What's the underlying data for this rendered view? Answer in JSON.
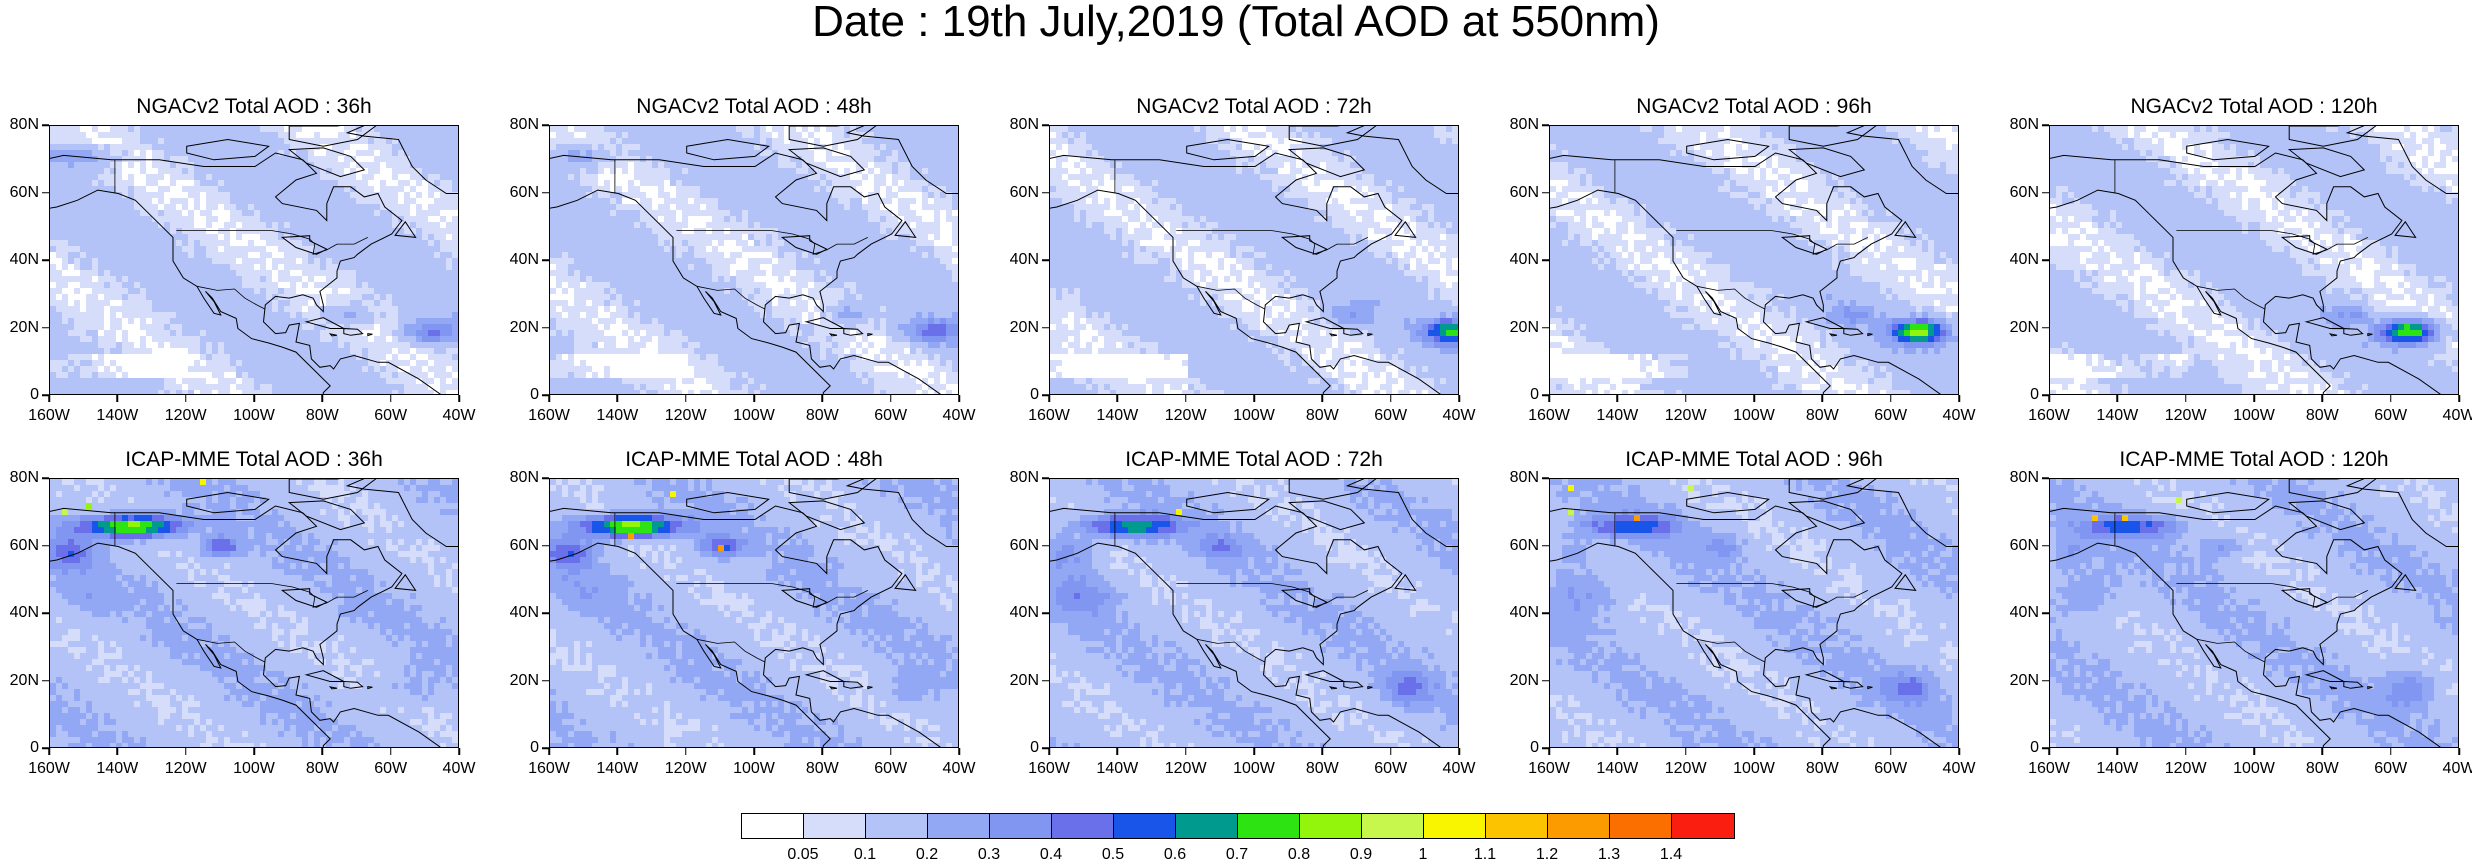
{
  "title": "Date : 19th July,2019 (Total AOD at 550nm)",
  "lat_labels": [
    "0",
    "20N",
    "40N",
    "60N",
    "80N"
  ],
  "lon_labels": [
    "160W",
    "140W",
    "120W",
    "100W",
    "80W",
    "60W",
    "40W"
  ],
  "panels": [
    {
      "title": "NGACv2 Total AOD : 36h",
      "model": "ngac",
      "hour": 36
    },
    {
      "title": "NGACv2 Total AOD : 48h",
      "model": "ngac",
      "hour": 48
    },
    {
      "title": "NGACv2 Total AOD : 72h",
      "model": "ngac",
      "hour": 72
    },
    {
      "title": "NGACv2 Total AOD : 96h",
      "model": "ngac",
      "hour": 96
    },
    {
      "title": "NGACv2 Total AOD : 120h",
      "model": "ngac",
      "hour": 120
    },
    {
      "title": "ICAP-MME Total AOD : 36h",
      "model": "icap",
      "hour": 36
    },
    {
      "title": "ICAP-MME Total AOD : 48h",
      "model": "icap",
      "hour": 48
    },
    {
      "title": "ICAP-MME Total AOD : 72h",
      "model": "icap",
      "hour": 72
    },
    {
      "title": "ICAP-MME Total AOD : 96h",
      "model": "icap",
      "hour": 96
    },
    {
      "title": "ICAP-MME Total AOD : 120h",
      "model": "icap",
      "hour": 120
    }
  ],
  "colorbar": {
    "labels": [
      "0.05",
      "0.1",
      "0.2",
      "0.3",
      "0.4",
      "0.5",
      "0.6",
      "0.7",
      "0.8",
      "0.9",
      "1",
      "1.1",
      "1.2",
      "1.3",
      "1.4"
    ],
    "colors": [
      "#ffffff",
      "#d6ddfa",
      "#b4c3f7",
      "#93a8f4",
      "#8196f1",
      "#6a6fea",
      "#1a55ea",
      "#009a8f",
      "#2ee312",
      "#93f50c",
      "#c7f74c",
      "#f9f500",
      "#fbc300",
      "#fc9b00",
      "#fb6e00",
      "#fa1e10"
    ]
  }
}
